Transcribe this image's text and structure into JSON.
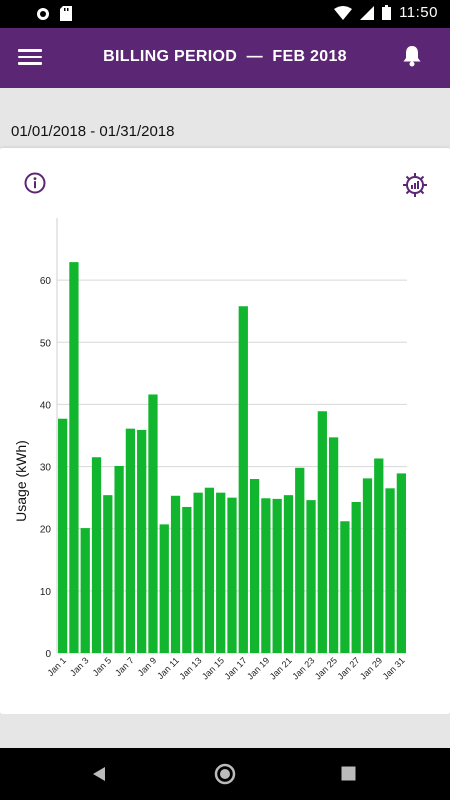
{
  "status_bar": {
    "time": "11:50"
  },
  "app_bar": {
    "title": "BILLING PERIOD  —  FEB 2018"
  },
  "date_range": "01/01/2018 - 01/31/2018",
  "colors": {
    "app_bar": "#5b2774",
    "bar": "#11b52e"
  },
  "icons": {
    "menu": "hamburger-menu-icon",
    "notifications": "bell-icon",
    "info": "info-circle-icon",
    "settings": "chart-settings-gear-icon"
  },
  "chart_data": {
    "type": "bar",
    "ylabel": "Usage (kWh)",
    "ylim": [
      0,
      70
    ],
    "yticks": [
      0,
      10,
      20,
      30,
      40,
      50,
      60
    ],
    "grid": true,
    "categories": [
      "Jan 1",
      "Jan 2",
      "Jan 3",
      "Jan 4",
      "Jan 5",
      "Jan 6",
      "Jan 7",
      "Jan 8",
      "Jan 9",
      "Jan 10",
      "Jan 11",
      "Jan 12",
      "Jan 13",
      "Jan 14",
      "Jan 15",
      "Jan 16",
      "Jan 17",
      "Jan 18",
      "Jan 19",
      "Jan 20",
      "Jan 21",
      "Jan 22",
      "Jan 23",
      "Jan 24",
      "Jan 25",
      "Jan 26",
      "Jan 27",
      "Jan 28",
      "Jan 29",
      "Jan 30",
      "Jan 31"
    ],
    "x_tick_labels": [
      "Jan 1",
      "Jan 3",
      "Jan 5",
      "Jan 7",
      "Jan 9",
      "Jan 11",
      "Jan 13",
      "Jan 15",
      "Jan 17",
      "Jan 19",
      "Jan 21",
      "Jan 23",
      "Jan 25",
      "Jan 27",
      "Jan 29",
      "Jan 31"
    ],
    "values": [
      37.7,
      62.9,
      20.1,
      31.5,
      25.4,
      30.1,
      36.1,
      35.9,
      41.6,
      20.7,
      25.3,
      23.5,
      25.8,
      26.6,
      25.8,
      25.0,
      55.8,
      28.0,
      24.9,
      24.8,
      25.4,
      29.8,
      24.6,
      38.9,
      34.7,
      21.2,
      24.3,
      28.1,
      31.3,
      26.5,
      28.9
    ]
  }
}
